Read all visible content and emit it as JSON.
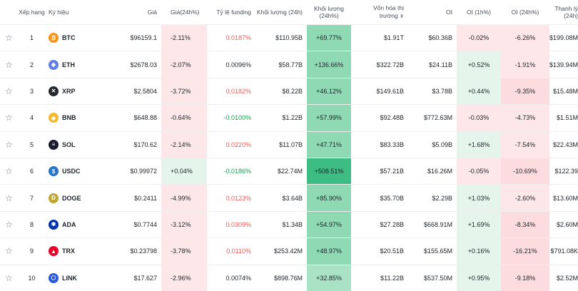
{
  "headers": {
    "star": "",
    "rank": "Xếp hạng",
    "symbol": "Ký hiệu",
    "price": "Giá",
    "price_change": "Giá(24h%)",
    "funding": "Tỷ lệ funding",
    "volume": "Khối lượng (24h)",
    "volume_change": "Khối lượng (24h%)",
    "market_cap_line1": "Vốn hóa thị",
    "market_cap_line2": "trường",
    "oi": "OI",
    "oi_1h": "OI (1h%)",
    "oi_24h": "OI (24h%)",
    "liquidation": "Thanh lý (24h)"
  },
  "rows": [
    {
      "rank": "1",
      "symbol": "BTC",
      "icon": "bitcoin-icon",
      "icon_color": "#f7931a",
      "icon_glyph": "₿",
      "price": "$96159.1",
      "price_change": "-2.11%",
      "funding": "0.0187%",
      "volume": "$110.95B",
      "volume_change": "+69.77%",
      "market_cap": "$1.91T",
      "oi": "$60.36B",
      "oi_1h": "-0.02%",
      "oi_24h": "-6.26%",
      "liquidation": "$199.08M"
    },
    {
      "rank": "2",
      "symbol": "ETH",
      "icon": "ethereum-icon",
      "icon_color": "#627eea",
      "icon_glyph": "◆",
      "price": "$2678.03",
      "price_change": "-2.07%",
      "funding": "0.0096%",
      "volume": "$58.77B",
      "volume_change": "+136.66%",
      "market_cap": "$322.72B",
      "oi": "$24.11B",
      "oi_1h": "+0.52%",
      "oi_24h": "-1.91%",
      "liquidation": "$139.94M"
    },
    {
      "rank": "3",
      "symbol": "XRP",
      "icon": "xrp-icon",
      "icon_color": "#23292f",
      "icon_glyph": "✕",
      "price": "$2.5804",
      "price_change": "-3.72%",
      "funding": "0.0182%",
      "volume": "$8.22B",
      "volume_change": "+46.12%",
      "market_cap": "$149.61B",
      "oi": "$3.78B",
      "oi_1h": "+0.44%",
      "oi_24h": "-9.35%",
      "liquidation": "$15.48M"
    },
    {
      "rank": "4",
      "symbol": "BNB",
      "icon": "bnb-icon",
      "icon_color": "#f3ba2f",
      "icon_glyph": "◈",
      "price": "$648.88",
      "price_change": "-0.64%",
      "funding": "-0.0100%",
      "volume": "$1.22B",
      "volume_change": "+57.99%",
      "market_cap": "$92.48B",
      "oi": "$772.63M",
      "oi_1h": "-0.03%",
      "oi_24h": "-4.73%",
      "liquidation": "$1.51M"
    },
    {
      "rank": "5",
      "symbol": "SOL",
      "icon": "solana-icon",
      "icon_color": "#1b1b2f",
      "icon_glyph": "≡",
      "price": "$170.62",
      "price_change": "-2.14%",
      "funding": "0.0220%",
      "volume": "$11.07B",
      "volume_change": "+47.71%",
      "market_cap": "$83.33B",
      "oi": "$5.09B",
      "oi_1h": "+1.68%",
      "oi_24h": "-7.54%",
      "liquidation": "$22.43M"
    },
    {
      "rank": "6",
      "symbol": "USDC",
      "icon": "usdc-icon",
      "icon_color": "#2775ca",
      "icon_glyph": "$",
      "price": "$0.99972",
      "price_change": "+0.04%",
      "funding": "-0.0186%",
      "volume": "$22.74M",
      "volume_change": "+508.51%",
      "market_cap": "$57.21B",
      "oi": "$16.26M",
      "oi_1h": "-0.05%",
      "oi_24h": "-10.69%",
      "liquidation": "$122.39"
    },
    {
      "rank": "7",
      "symbol": "DOGE",
      "icon": "dogecoin-icon",
      "icon_color": "#c2a633",
      "icon_glyph": "Ð",
      "price": "$0.2411",
      "price_change": "-4.99%",
      "funding": "0.0123%",
      "volume": "$3.64B",
      "volume_change": "+85.90%",
      "market_cap": "$35.70B",
      "oi": "$2.29B",
      "oi_1h": "+1.03%",
      "oi_24h": "-2.60%",
      "liquidation": "$13.60M"
    },
    {
      "rank": "8",
      "symbol": "ADA",
      "icon": "cardano-icon",
      "icon_color": "#0033ad",
      "icon_glyph": "✱",
      "price": "$0.7744",
      "price_change": "-3.12%",
      "funding": "0.0309%",
      "volume": "$1.34B",
      "volume_change": "+54.97%",
      "market_cap": "$27.28B",
      "oi": "$668.91M",
      "oi_1h": "+1.69%",
      "oi_24h": "-8.34%",
      "liquidation": "$2.60M"
    },
    {
      "rank": "9",
      "symbol": "TRX",
      "icon": "tron-icon",
      "icon_color": "#eb0029",
      "icon_glyph": "▲",
      "price": "$0.23798",
      "price_change": "-3.78%",
      "funding": "0.0110%",
      "volume": "$253.42M",
      "volume_change": "+48.97%",
      "market_cap": "$20.51B",
      "oi": "$155.65M",
      "oi_1h": "+0.16%",
      "oi_24h": "-16.21%",
      "liquidation": "$791.08K"
    },
    {
      "rank": "10",
      "symbol": "LINK",
      "icon": "chainlink-icon",
      "icon_color": "#2a5ada",
      "icon_glyph": "⬡",
      "price": "$17.627",
      "price_change": "-2.96%",
      "funding": "0.0074%",
      "volume": "$898.76M",
      "volume_change": "+32.85%",
      "market_cap": "$11.22B",
      "oi": "$537.50M",
      "oi_1h": "+0.95%",
      "oi_24h": "-9.18%",
      "liquidation": "$2.52M"
    }
  ]
}
